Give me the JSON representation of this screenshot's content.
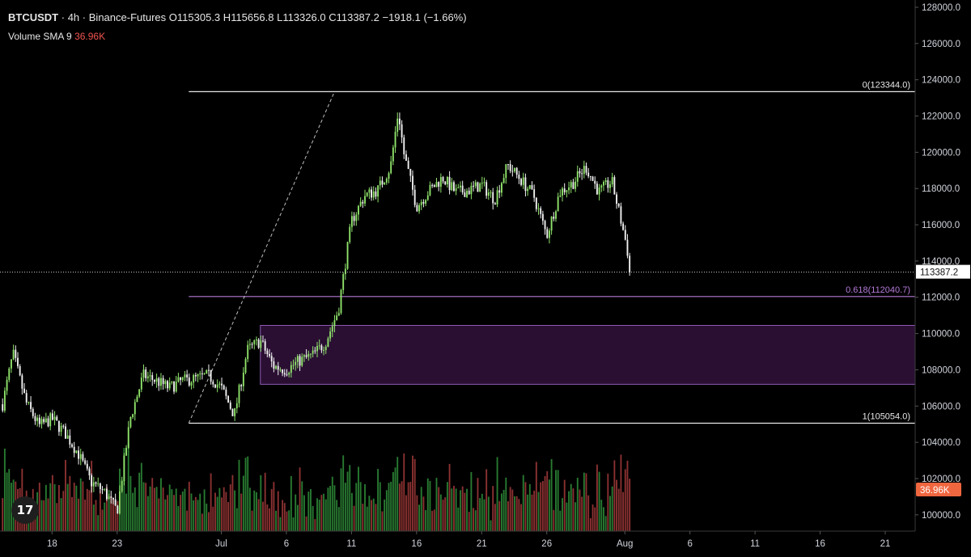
{
  "header": {
    "symbol": "BTCUSDT",
    "sep1": "·",
    "interval": "4h",
    "sep2": "·",
    "exchange": "Binance-Futures",
    "o_label": "O",
    "open": "115305.3",
    "h_label": "H",
    "high": "115656.8",
    "l_label": "L",
    "low": "113326.0",
    "c_label": "C",
    "close": "113387.2",
    "change": "−1918.1 (−1.66%)"
  },
  "volume_legend": {
    "label": "Volume SMA 9",
    "value": "36.96K"
  },
  "logo": "17",
  "colors": {
    "background": "#000000",
    "up": "#8fe36a",
    "down": "#f2f2f2",
    "vol_up": "#2f8f3a",
    "vol_down": "#a33a3a",
    "fib": "#b57bd9",
    "zone_fill": "#2a0f33",
    "zone_border": "#8e5bb3",
    "level_line": "#e8e8e8",
    "price_label_bg": "#ffffff",
    "vol_label_bg": "#f0663f"
  },
  "chart_data": {
    "type": "candlestick",
    "timeframe": "4h",
    "y_ticks": [
      128000,
      126000,
      124000,
      122000,
      120000,
      118000,
      116000,
      114000,
      112000,
      110000,
      108000,
      106000,
      104000,
      102000,
      100000
    ],
    "y_tick_labels": [
      "128000.0",
      "126000.0",
      "124000.0",
      "122000.0",
      "120000.0",
      "118000.0",
      "116000.0",
      "114000.0",
      "112000.0",
      "110000.0",
      "108000.0",
      "106000.0",
      "104000.0",
      "102000.0",
      "100000.0"
    ],
    "ylim": [
      99100,
      128400
    ],
    "x_tick_labels": [
      "18",
      "23",
      "Jul",
      "6",
      "11",
      "16",
      "21",
      "26",
      "Aug",
      "6",
      "11",
      "16",
      "21"
    ],
    "x_tick_days": [
      -13,
      -8,
      0,
      5,
      10,
      15,
      20,
      25,
      31,
      36,
      41,
      46,
      51
    ],
    "x_range_days": [
      -17,
      53.3
    ],
    "current_price": 113387.2,
    "current_price_label": "113387.2",
    "volume_sma_label": "36.96K",
    "fibonacci": {
      "levels": [
        {
          "ratio": 0,
          "price": 123344.0,
          "label": "0(123344.0)"
        },
        {
          "ratio": 0.618,
          "price": 112040.7,
          "label": "0.618(112040.7)"
        },
        {
          "ratio": 1,
          "price": 105054.0,
          "label": "1(105054.0)"
        }
      ],
      "start_day": -2.5
    },
    "zone": {
      "start_day": 3,
      "top": 110450,
      "bottom": 107200
    },
    "trend_line": {
      "from": {
        "day": -2.5,
        "price": 105054
      },
      "to": {
        "day": 8.7,
        "price": 123350
      }
    },
    "price_path": [
      {
        "day": -17,
        "price": 105400
      },
      {
        "day": -16,
        "price": 108900
      },
      {
        "day": -15,
        "price": 106200
      },
      {
        "day": -14,
        "price": 104900
      },
      {
        "day": -13,
        "price": 105300
      },
      {
        "day": -12,
        "price": 104500
      },
      {
        "day": -11,
        "price": 103400
      },
      {
        "day": -10,
        "price": 101800
      },
      {
        "day": -9,
        "price": 101300
      },
      {
        "day": -8,
        "price": 100200
      },
      {
        "day": -7,
        "price": 105300
      },
      {
        "day": -6,
        "price": 107700
      },
      {
        "day": -5,
        "price": 107400
      },
      {
        "day": -4,
        "price": 107000
      },
      {
        "day": -3,
        "price": 107400
      },
      {
        "day": -2,
        "price": 107500
      },
      {
        "day": -1,
        "price": 107700
      },
      {
        "day": 0,
        "price": 107000
      },
      {
        "day": 1,
        "price": 105500
      },
      {
        "day": 2,
        "price": 109100
      },
      {
        "day": 3,
        "price": 109600
      },
      {
        "day": 4,
        "price": 108200
      },
      {
        "day": 5,
        "price": 108000
      },
      {
        "day": 6,
        "price": 108500
      },
      {
        "day": 7,
        "price": 108800
      },
      {
        "day": 8,
        "price": 109500
      },
      {
        "day": 9,
        "price": 111300
      },
      {
        "day": 10,
        "price": 116200
      },
      {
        "day": 11,
        "price": 117600
      },
      {
        "day": 12,
        "price": 117900
      },
      {
        "day": 13,
        "price": 119200
      },
      {
        "day": 13.6,
        "price": 122300
      },
      {
        "day": 14,
        "price": 120000
      },
      {
        "day": 15,
        "price": 117000
      },
      {
        "day": 16,
        "price": 117900
      },
      {
        "day": 17,
        "price": 118600
      },
      {
        "day": 18,
        "price": 117800
      },
      {
        "day": 19,
        "price": 117900
      },
      {
        "day": 20,
        "price": 118200
      },
      {
        "day": 21,
        "price": 117400
      },
      {
        "day": 22,
        "price": 119300
      },
      {
        "day": 23,
        "price": 118500
      },
      {
        "day": 24,
        "price": 117600
      },
      {
        "day": 25,
        "price": 115400
      },
      {
        "day": 26,
        "price": 117800
      },
      {
        "day": 27,
        "price": 118300
      },
      {
        "day": 28,
        "price": 119200
      },
      {
        "day": 29,
        "price": 117800
      },
      {
        "day": 30,
        "price": 118400
      },
      {
        "day": 31,
        "price": 115300
      },
      {
        "day": 31.5,
        "price": 113400
      }
    ]
  }
}
